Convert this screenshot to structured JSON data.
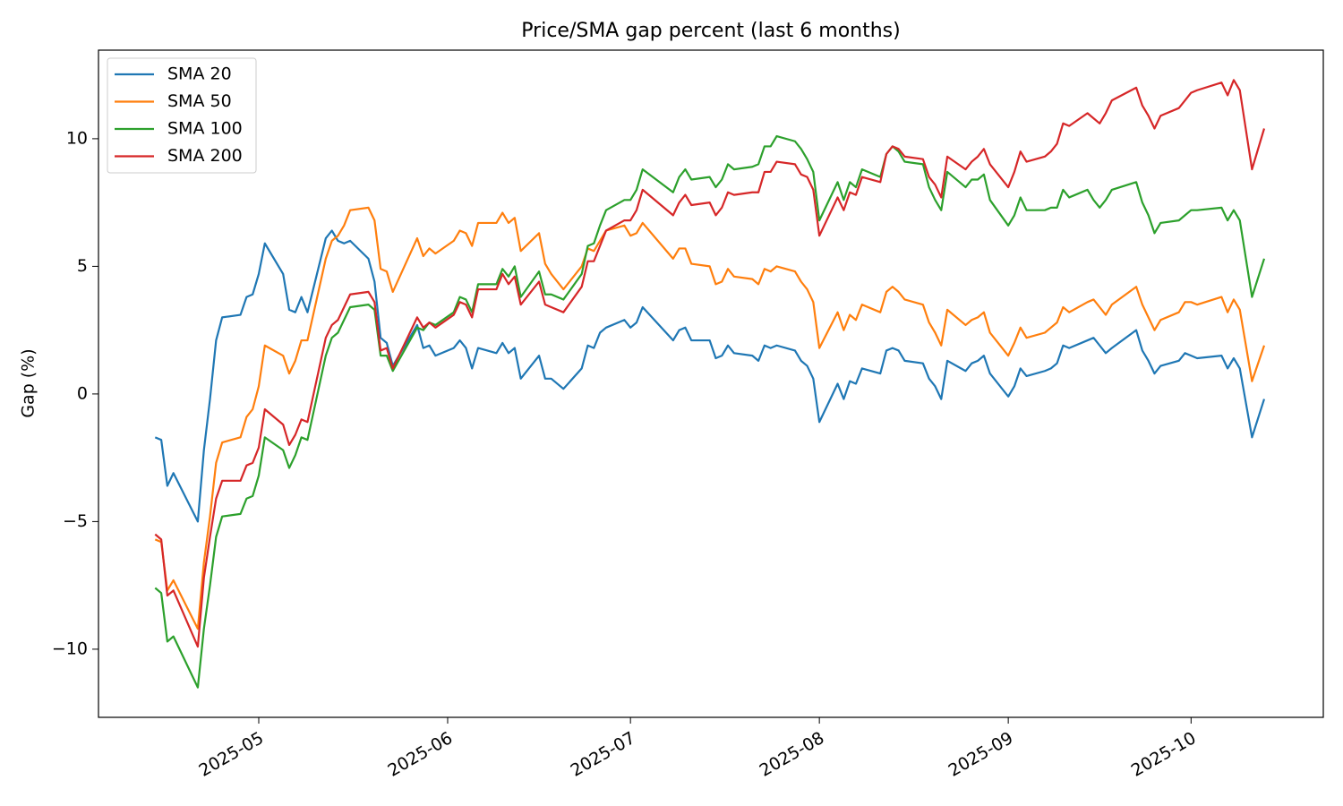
{
  "chart_data": {
    "type": "line",
    "title": "Price/SMA gap percent (last 6 months)",
    "y_label": "Gap (%)",
    "x": [
      20192,
      20193,
      20194,
      20195,
      20199,
      20200,
      20201,
      20202,
      20203,
      20206,
      20207,
      20208,
      20209,
      20210,
      20213,
      20214,
      20215,
      20216,
      20217,
      20220,
      20221,
      20222,
      20223,
      20224,
      20227,
      20228,
      20229,
      20230,
      20231,
      20235,
      20236,
      20237,
      20238,
      20241,
      20242,
      20243,
      20244,
      20245,
      20248,
      20249,
      20250,
      20251,
      20252,
      20255,
      20256,
      20257,
      20259,
      20262,
      20263,
      20264,
      20265,
      20266,
      20269,
      20270,
      20271,
      20272,
      20277,
      20278,
      20279,
      20280,
      20283,
      20284,
      20285,
      20286,
      20287,
      20290,
      20291,
      20292,
      20293,
      20294,
      20297,
      20298,
      20299,
      20300,
      20301,
      20304,
      20305,
      20306,
      20307,
      20308,
      20311,
      20312,
      20313,
      20314,
      20315,
      20318,
      20319,
      20320,
      20321,
      20322,
      20325,
      20326,
      20327,
      20328,
      20329,
      20332,
      20333,
      20334,
      20335,
      20338,
      20339,
      20340,
      20341,
      20342,
      20345,
      20346,
      20347,
      20348,
      20349,
      20353,
      20354,
      20355,
      20356,
      20357,
      20360,
      20361,
      20362,
      20363,
      20367,
      20368,
      20369,
      20370,
      20372,
      20374
    ],
    "series": [
      {
        "name": "SMA 20",
        "color": "#1f77b4",
        "values": [
          -1.7,
          -1.8,
          -3.6,
          -3.1,
          -5.0,
          -2.2,
          -0.2,
          2.1,
          3.0,
          3.1,
          3.8,
          3.9,
          4.7,
          5.9,
          4.7,
          3.3,
          3.2,
          3.8,
          3.2,
          6.1,
          6.4,
          6.0,
          5.9,
          6.0,
          5.3,
          4.4,
          2.2,
          2.0,
          1.1,
          2.7,
          1.8,
          1.9,
          1.5,
          1.8,
          2.1,
          1.8,
          1.0,
          1.8,
          1.6,
          2.0,
          1.6,
          1.8,
          0.6,
          1.5,
          0.6,
          0.6,
          0.2,
          1.0,
          1.9,
          1.8,
          2.4,
          2.6,
          2.9,
          2.6,
          2.8,
          3.4,
          2.1,
          2.5,
          2.6,
          2.1,
          2.1,
          1.4,
          1.5,
          1.9,
          1.6,
          1.5,
          1.3,
          1.9,
          1.8,
          1.9,
          1.7,
          1.3,
          1.1,
          0.6,
          -1.1,
          0.4,
          -0.2,
          0.5,
          0.4,
          1.0,
          0.8,
          1.7,
          1.8,
          1.7,
          1.3,
          1.2,
          0.6,
          0.3,
          -0.2,
          1.3,
          0.9,
          1.2,
          1.3,
          1.5,
          0.8,
          -0.1,
          0.3,
          1.0,
          0.7,
          0.9,
          1.0,
          1.2,
          1.9,
          1.8,
          2.1,
          2.2,
          1.9,
          1.6,
          1.8,
          2.5,
          1.7,
          1.3,
          0.8,
          1.1,
          1.3,
          1.6,
          1.5,
          1.4,
          1.5,
          1.0,
          1.4,
          1.0,
          -1.7,
          -0.2
        ]
      },
      {
        "name": "SMA 50",
        "color": "#ff7f0e",
        "values": [
          -5.7,
          -5.8,
          -7.7,
          -7.3,
          -9.2,
          -6.6,
          -4.8,
          -2.7,
          -1.9,
          -1.7,
          -0.9,
          -0.6,
          0.3,
          1.9,
          1.5,
          0.8,
          1.3,
          2.1,
          2.1,
          5.3,
          6.0,
          6.2,
          6.6,
          7.2,
          7.3,
          6.8,
          4.9,
          4.8,
          4.0,
          6.1,
          5.4,
          5.7,
          5.5,
          6.0,
          6.4,
          6.3,
          5.8,
          6.7,
          6.7,
          7.1,
          6.7,
          6.9,
          5.6,
          6.3,
          5.1,
          4.7,
          4.1,
          5.0,
          5.7,
          5.6,
          6.0,
          6.4,
          6.6,
          6.2,
          6.3,
          6.7,
          5.3,
          5.7,
          5.7,
          5.1,
          5.0,
          4.3,
          4.4,
          4.9,
          4.6,
          4.5,
          4.3,
          4.9,
          4.8,
          5.0,
          4.8,
          4.4,
          4.1,
          3.6,
          1.8,
          3.2,
          2.5,
          3.1,
          2.9,
          3.5,
          3.2,
          4.0,
          4.2,
          4.0,
          3.7,
          3.5,
          2.8,
          2.4,
          1.9,
          3.3,
          2.7,
          2.9,
          3.0,
          3.2,
          2.4,
          1.5,
          2.0,
          2.6,
          2.2,
          2.4,
          2.6,
          2.8,
          3.4,
          3.2,
          3.6,
          3.7,
          3.4,
          3.1,
          3.5,
          4.2,
          3.5,
          3.0,
          2.5,
          2.9,
          3.2,
          3.6,
          3.6,
          3.5,
          3.8,
          3.2,
          3.7,
          3.3,
          0.5,
          1.9
        ]
      },
      {
        "name": "SMA 100",
        "color": "#2ca02c",
        "values": [
          -7.6,
          -7.8,
          -9.7,
          -9.5,
          -11.5,
          -9.2,
          -7.5,
          -5.6,
          -4.8,
          -4.7,
          -4.1,
          -4.0,
          -3.2,
          -1.7,
          -2.2,
          -2.9,
          -2.4,
          -1.7,
          -1.8,
          1.5,
          2.2,
          2.4,
          2.9,
          3.4,
          3.5,
          3.3,
          1.5,
          1.5,
          0.9,
          2.6,
          2.5,
          2.8,
          2.7,
          3.2,
          3.8,
          3.7,
          3.2,
          4.3,
          4.3,
          4.9,
          4.6,
          5.0,
          3.8,
          4.8,
          3.9,
          3.9,
          3.7,
          4.7,
          5.8,
          5.9,
          6.6,
          7.2,
          7.6,
          7.6,
          8.0,
          8.8,
          7.9,
          8.5,
          8.8,
          8.4,
          8.5,
          8.1,
          8.4,
          9.0,
          8.8,
          8.9,
          9.0,
          9.7,
          9.7,
          10.1,
          9.9,
          9.6,
          9.2,
          8.7,
          6.8,
          8.3,
          7.6,
          8.3,
          8.1,
          8.8,
          8.5,
          9.4,
          9.7,
          9.5,
          9.1,
          9.0,
          8.1,
          7.6,
          7.2,
          8.7,
          8.1,
          8.4,
          8.4,
          8.6,
          7.6,
          6.6,
          7.0,
          7.7,
          7.2,
          7.2,
          7.3,
          7.3,
          8.0,
          7.7,
          8.0,
          7.6,
          7.3,
          7.6,
          8.0,
          8.3,
          7.5,
          7.0,
          6.3,
          6.7,
          6.8,
          7.0,
          7.2,
          7.2,
          7.3,
          6.8,
          7.2,
          6.8,
          3.8,
          5.3
        ]
      },
      {
        "name": "SMA 200",
        "color": "#d62728",
        "values": [
          -5.5,
          -5.7,
          -7.9,
          -7.7,
          -9.9,
          -7.2,
          -5.6,
          -4.1,
          -3.4,
          -3.4,
          -2.8,
          -2.7,
          -2.1,
          -0.6,
          -1.2,
          -2.0,
          -1.6,
          -1.0,
          -1.1,
          2.2,
          2.7,
          2.9,
          3.4,
          3.9,
          4.0,
          3.6,
          1.7,
          1.8,
          1.0,
          3.0,
          2.6,
          2.8,
          2.6,
          3.1,
          3.6,
          3.5,
          3.0,
          4.1,
          4.1,
          4.7,
          4.3,
          4.6,
          3.5,
          4.4,
          3.5,
          3.4,
          3.2,
          4.2,
          5.2,
          5.2,
          5.8,
          6.4,
          6.8,
          6.8,
          7.2,
          8.0,
          7.0,
          7.5,
          7.8,
          7.4,
          7.5,
          7.0,
          7.3,
          7.9,
          7.8,
          7.9,
          7.9,
          8.7,
          8.7,
          9.1,
          9.0,
          8.6,
          8.5,
          8.0,
          6.2,
          7.7,
          7.2,
          7.9,
          7.8,
          8.5,
          8.3,
          9.4,
          9.7,
          9.6,
          9.3,
          9.2,
          8.5,
          8.2,
          7.7,
          9.3,
          8.8,
          9.1,
          9.3,
          9.6,
          9.0,
          8.1,
          8.7,
          9.5,
          9.1,
          9.3,
          9.5,
          9.8,
          10.6,
          10.5,
          11.0,
          10.8,
          10.6,
          11.0,
          11.5,
          12.0,
          11.3,
          10.9,
          10.4,
          10.9,
          11.2,
          11.5,
          11.8,
          11.9,
          12.2,
          11.7,
          12.3,
          11.9,
          8.8,
          10.4
        ]
      }
    ],
    "xlim": [
      20182.7,
      20383.7
    ],
    "xticks": [
      {
        "value": 20209,
        "label": "2025-05"
      },
      {
        "value": 20240,
        "label": "2025-06"
      },
      {
        "value": 20270,
        "label": "2025-07"
      },
      {
        "value": 20301,
        "label": "2025-08"
      },
      {
        "value": 20332,
        "label": "2025-09"
      },
      {
        "value": 20362,
        "label": "2025-10"
      }
    ],
    "ylim": [
      -12.67,
      13.47
    ],
    "yticks": [
      {
        "value": -10,
        "label": "−10"
      },
      {
        "value": -5,
        "label": "−5"
      },
      0,
      5,
      10
    ],
    "grid": false,
    "legend": "upper left"
  }
}
